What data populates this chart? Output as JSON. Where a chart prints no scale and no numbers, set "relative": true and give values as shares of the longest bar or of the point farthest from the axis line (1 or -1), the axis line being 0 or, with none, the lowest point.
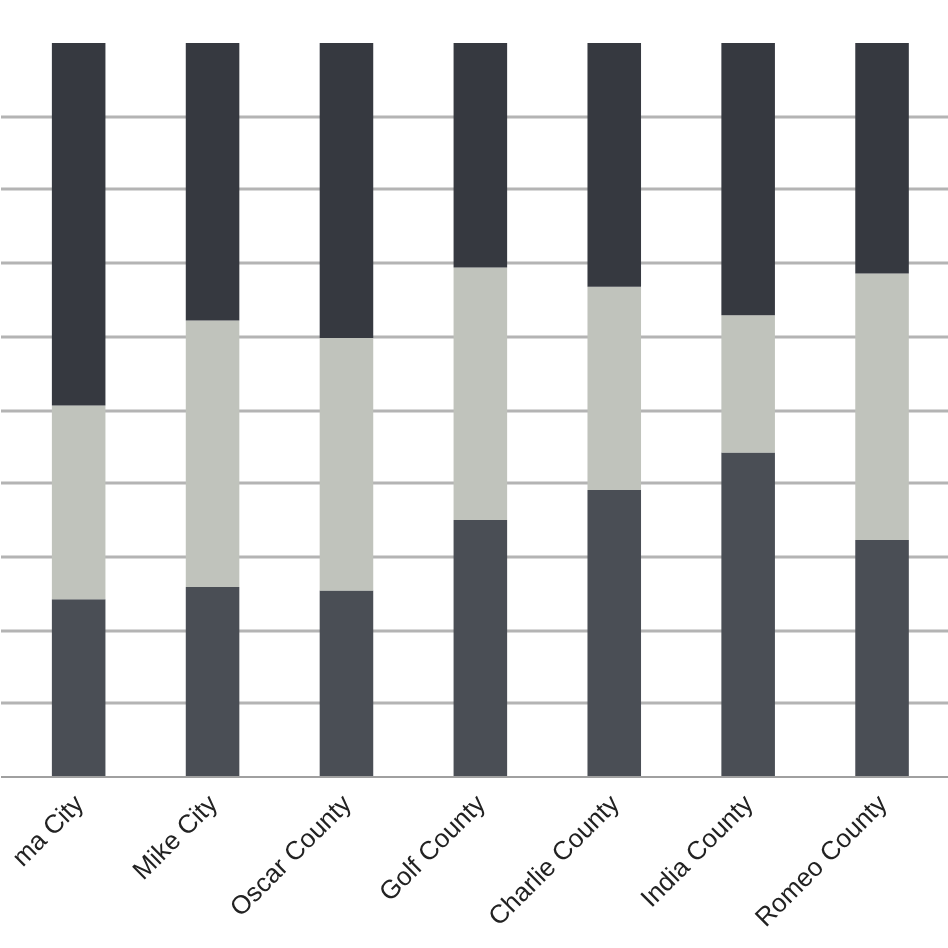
{
  "chart_data": {
    "type": "bar",
    "stacked": true,
    "relative": true,
    "grid": "y",
    "categories": [
      "ma City",
      "Mike City",
      "Oscar County",
      "Golf County",
      "Charlie County",
      "India County",
      "Romeo County"
    ],
    "series": [
      {
        "color": "#4a4e55",
        "values": [
          0.242,
          0.259,
          0.254,
          0.35,
          0.391,
          0.442,
          0.323
        ]
      },
      {
        "color": "#c0c3bc",
        "values": [
          0.264,
          0.363,
          0.344,
          0.344,
          0.277,
          0.187,
          0.363
        ]
      },
      {
        "color": "#363940",
        "values": [
          0.494,
          0.378,
          0.402,
          0.306,
          0.332,
          0.371,
          0.314
        ]
      }
    ]
  }
}
